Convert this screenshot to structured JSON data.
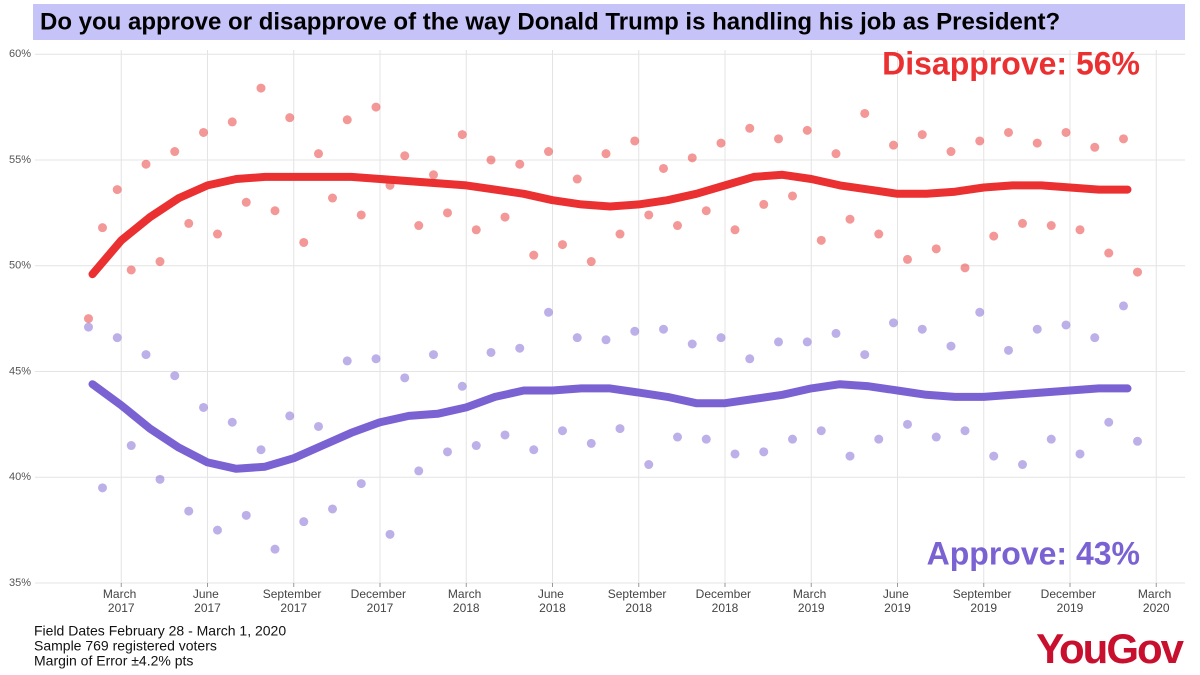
{
  "chart_data": {
    "type": "scatter",
    "title": "Do you approve or disapprove of the way Donald Trump is handling his job as President?",
    "x": [
      "2017-02",
      "2017-03",
      "2017-04",
      "2017-05",
      "2017-06",
      "2017-07",
      "2017-08",
      "2017-09",
      "2017-10",
      "2017-11",
      "2017-12",
      "2018-01",
      "2018-02",
      "2018-03",
      "2018-04",
      "2018-05",
      "2018-06",
      "2018-07",
      "2018-08",
      "2018-09",
      "2018-10",
      "2018-11",
      "2018-12",
      "2019-01",
      "2019-02",
      "2019-03",
      "2019-04",
      "2019-05",
      "2019-06",
      "2019-07",
      "2019-08",
      "2019-09",
      "2019-10",
      "2019-11",
      "2019-12",
      "2020-01",
      "2020-02"
    ],
    "series": [
      {
        "name": "Disapprove",
        "color": "#ea3030",
        "values": [
          49.6,
          51.2,
          52.3,
          53.2,
          53.8,
          54.1,
          54.2,
          54.2,
          54.2,
          54.2,
          54.1,
          54.0,
          53.9,
          53.8,
          53.6,
          53.4,
          53.1,
          52.9,
          52.8,
          52.9,
          53.1,
          53.4,
          53.8,
          54.2,
          54.3,
          54.1,
          53.8,
          53.6,
          53.4,
          53.4,
          53.5,
          53.7,
          53.8,
          53.8,
          53.7,
          53.6,
          53.6
        ],
        "dots": [
          [
            47.5,
            51.8
          ],
          [
            53.6,
            49.8
          ],
          [
            54.8,
            50.2
          ],
          [
            55.4,
            52.0
          ],
          [
            56.3,
            51.5
          ],
          [
            56.8,
            53.0
          ],
          [
            58.4,
            52.6
          ],
          [
            57.0,
            51.1
          ],
          [
            55.3,
            53.2
          ],
          [
            56.9,
            52.4
          ],
          [
            57.5,
            53.8
          ],
          [
            55.2,
            51.9
          ],
          [
            54.3,
            52.5
          ],
          [
            56.2,
            51.7
          ],
          [
            55.0,
            52.3
          ],
          [
            54.8,
            50.5
          ],
          [
            55.4,
            51.0
          ],
          [
            54.1,
            50.2
          ],
          [
            55.3,
            51.5
          ],
          [
            55.9,
            52.4
          ],
          [
            54.6,
            51.9
          ],
          [
            55.1,
            52.6
          ],
          [
            55.8,
            51.7
          ],
          [
            56.5,
            52.9
          ],
          [
            56.0,
            53.3
          ],
          [
            56.4,
            51.2
          ],
          [
            55.3,
            52.2
          ],
          [
            57.2,
            51.5
          ],
          [
            55.7,
            50.3
          ],
          [
            56.2,
            50.8
          ],
          [
            55.4,
            49.9
          ],
          [
            55.9,
            51.4
          ],
          [
            56.3,
            52.0
          ],
          [
            55.8,
            51.9
          ],
          [
            56.3,
            51.7
          ],
          [
            55.6,
            50.6
          ],
          [
            56.0,
            49.7
          ]
        ]
      },
      {
        "name": "Approve",
        "color": "#7b62d3",
        "values": [
          44.4,
          43.4,
          42.3,
          41.4,
          40.7,
          40.4,
          40.5,
          40.9,
          41.5,
          42.1,
          42.6,
          42.9,
          43.0,
          43.3,
          43.8,
          44.1,
          44.1,
          44.2,
          44.2,
          44.0,
          43.8,
          43.5,
          43.5,
          43.7,
          43.9,
          44.2,
          44.4,
          44.3,
          44.1,
          43.9,
          43.8,
          43.8,
          43.9,
          44.0,
          44.1,
          44.2,
          44.2
        ],
        "dots": [
          [
            47.1,
            39.5
          ],
          [
            46.6,
            41.5
          ],
          [
            45.8,
            39.9
          ],
          [
            44.8,
            38.4
          ],
          [
            43.3,
            37.5
          ],
          [
            42.6,
            38.2
          ],
          [
            41.3,
            36.6
          ],
          [
            42.9,
            37.9
          ],
          [
            42.4,
            38.5
          ],
          [
            45.5,
            39.7
          ],
          [
            45.6,
            37.3
          ],
          [
            44.7,
            40.3
          ],
          [
            45.8,
            41.2
          ],
          [
            44.3,
            41.5
          ],
          [
            45.9,
            42.0
          ],
          [
            46.1,
            41.3
          ],
          [
            47.8,
            42.2
          ],
          [
            46.6,
            41.6
          ],
          [
            46.5,
            42.3
          ],
          [
            46.9,
            40.6
          ],
          [
            47.0,
            41.9
          ],
          [
            46.3,
            41.8
          ],
          [
            46.6,
            41.1
          ],
          [
            45.6,
            41.2
          ],
          [
            46.4,
            41.8
          ],
          [
            46.4,
            42.2
          ],
          [
            46.8,
            41.0
          ],
          [
            45.8,
            41.8
          ],
          [
            47.3,
            42.5
          ],
          [
            47.0,
            41.9
          ],
          [
            46.2,
            42.2
          ],
          [
            47.8,
            41.0
          ],
          [
            46.0,
            40.6
          ],
          [
            47.0,
            41.8
          ],
          [
            47.2,
            41.1
          ],
          [
            46.6,
            42.6
          ],
          [
            48.1,
            41.7
          ]
        ]
      }
    ],
    "annotations": [
      "Disapprove: 56%",
      "Approve: 43%"
    ],
    "xlim": [
      "2016-12",
      "2020-04"
    ],
    "xticks": [
      {
        "value": "2017-03",
        "label": "March 2017"
      },
      {
        "value": "2017-06",
        "label": "June 2017"
      },
      {
        "value": "2017-09",
        "label": "September 2017"
      },
      {
        "value": "2017-12",
        "label": "December 2017"
      },
      {
        "value": "2018-03",
        "label": "March 2018"
      },
      {
        "value": "2018-06",
        "label": "June 2018"
      },
      {
        "value": "2018-09",
        "label": "September 2018"
      },
      {
        "value": "2018-12",
        "label": "December 2018"
      },
      {
        "value": "2019-03",
        "label": "March 2019"
      },
      {
        "value": "2019-06",
        "label": "June 2019"
      },
      {
        "value": "2019-09",
        "label": "September 2019"
      },
      {
        "value": "2019-12",
        "label": "December 2019"
      },
      {
        "value": "2020-03",
        "label": "March 2020"
      }
    ],
    "ylim": [
      35,
      60.2
    ],
    "yticks": [
      {
        "value": 35,
        "label": "35%"
      },
      {
        "value": 40,
        "label": "40%"
      },
      {
        "value": 45,
        "label": "45%"
      },
      {
        "value": 50,
        "label": "50%"
      },
      {
        "value": 55,
        "label": "55%"
      },
      {
        "value": 60,
        "label": "60%"
      }
    ],
    "grid": true,
    "notes": [
      "Field Dates February 28 - March 1, 2020",
      "Sample 769 registered voters",
      "Margin of Error ±4.2% pts"
    ],
    "source": "YouGov"
  }
}
